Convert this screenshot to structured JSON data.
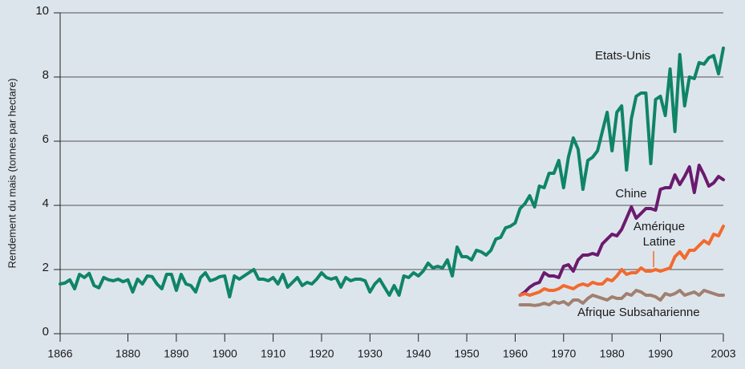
{
  "chart_data": {
    "type": "line",
    "ylabel": "Rendement du mais (tonnes par hectare)",
    "xlim": [
      1866,
      2003
    ],
    "ylim": [
      0,
      10
    ],
    "xticks": [
      1866,
      1880,
      1890,
      1900,
      1910,
      1920,
      1930,
      1940,
      1950,
      1960,
      1970,
      1980,
      1990,
      2003
    ],
    "yticks": [
      0,
      2,
      4,
      6,
      8,
      10
    ],
    "grid": true,
    "series": [
      {
        "name": "Etats-Unis",
        "color": "#0f8565",
        "x": [
          1866,
          1867,
          1868,
          1869,
          1870,
          1871,
          1872,
          1873,
          1874,
          1875,
          1876,
          1877,
          1878,
          1879,
          1880,
          1881,
          1882,
          1883,
          1884,
          1885,
          1886,
          1887,
          1888,
          1889,
          1890,
          1891,
          1892,
          1893,
          1894,
          1895,
          1896,
          1897,
          1898,
          1899,
          1900,
          1901,
          1902,
          1903,
          1904,
          1905,
          1906,
          1907,
          1908,
          1909,
          1910,
          1911,
          1912,
          1913,
          1914,
          1915,
          1916,
          1917,
          1918,
          1919,
          1920,
          1921,
          1922,
          1923,
          1924,
          1925,
          1926,
          1927,
          1928,
          1929,
          1930,
          1931,
          1932,
          1933,
          1934,
          1935,
          1936,
          1937,
          1938,
          1939,
          1940,
          1941,
          1942,
          1943,
          1944,
          1945,
          1946,
          1947,
          1948,
          1949,
          1950,
          1951,
          1952,
          1953,
          1954,
          1955,
          1956,
          1957,
          1958,
          1959,
          1960,
          1961,
          1962,
          1963,
          1964,
          1965,
          1966,
          1967,
          1968,
          1969,
          1970,
          1971,
          1972,
          1973,
          1974,
          1975,
          1976,
          1977,
          1978,
          1979,
          1980,
          1981,
          1982,
          1983,
          1984,
          1985,
          1986,
          1987,
          1988,
          1989,
          1990,
          1991,
          1992,
          1993,
          1994,
          1995,
          1996,
          1997,
          1998,
          1999,
          2000,
          2001,
          2002,
          2003
        ],
        "values": [
          1.55,
          1.58,
          1.68,
          1.4,
          1.85,
          1.75,
          1.88,
          1.5,
          1.43,
          1.75,
          1.68,
          1.65,
          1.7,
          1.62,
          1.68,
          1.3,
          1.7,
          1.55,
          1.8,
          1.78,
          1.55,
          1.4,
          1.85,
          1.85,
          1.35,
          1.85,
          1.55,
          1.5,
          1.3,
          1.75,
          1.9,
          1.65,
          1.7,
          1.78,
          1.8,
          1.15,
          1.8,
          1.7,
          1.8,
          1.9,
          2.0,
          1.7,
          1.7,
          1.65,
          1.75,
          1.55,
          1.85,
          1.45,
          1.6,
          1.75,
          1.5,
          1.6,
          1.55,
          1.7,
          1.9,
          1.75,
          1.7,
          1.75,
          1.45,
          1.75,
          1.65,
          1.7,
          1.7,
          1.65,
          1.3,
          1.55,
          1.7,
          1.45,
          1.2,
          1.5,
          1.2,
          1.8,
          1.75,
          1.9,
          1.8,
          1.95,
          2.2,
          2.05,
          2.1,
          2.05,
          2.3,
          1.8,
          2.7,
          2.4,
          2.4,
          2.3,
          2.6,
          2.55,
          2.45,
          2.6,
          2.95,
          3.0,
          3.3,
          3.35,
          3.45,
          3.9,
          4.05,
          4.3,
          3.95,
          4.6,
          4.55,
          5.0,
          5.0,
          5.4,
          4.55,
          5.5,
          6.1,
          5.75,
          4.5,
          5.4,
          5.5,
          5.7,
          6.3,
          6.9,
          5.7,
          6.9,
          7.1,
          5.1,
          6.7,
          7.4,
          7.5,
          7.5,
          5.3,
          7.3,
          7.4,
          6.8,
          8.25,
          6.3,
          8.7,
          7.1,
          8.0,
          7.95,
          8.45,
          8.4,
          8.6,
          8.67,
          8.1,
          8.9
        ]
      },
      {
        "name": "Chine",
        "color": "#6b1a6e",
        "x": [
          1961,
          1962,
          1963,
          1964,
          1965,
          1966,
          1967,
          1968,
          1969,
          1970,
          1971,
          1972,
          1973,
          1974,
          1975,
          1976,
          1977,
          1978,
          1979,
          1980,
          1981,
          1982,
          1983,
          1984,
          1985,
          1986,
          1987,
          1988,
          1989,
          1990,
          1991,
          1992,
          1993,
          1994,
          1995,
          1996,
          1997,
          1998,
          1999,
          2000,
          2001,
          2002,
          2003
        ],
        "values": [
          1.2,
          1.3,
          1.45,
          1.55,
          1.6,
          1.9,
          1.8,
          1.8,
          1.75,
          2.1,
          2.15,
          1.95,
          2.3,
          2.45,
          2.45,
          2.5,
          2.45,
          2.8,
          2.95,
          3.1,
          3.05,
          3.25,
          3.6,
          3.95,
          3.6,
          3.75,
          3.9,
          3.9,
          3.85,
          4.5,
          4.55,
          4.55,
          4.95,
          4.65,
          4.9,
          5.2,
          4.4,
          5.25,
          4.95,
          4.6,
          4.7,
          4.9,
          4.8
        ]
      },
      {
        "name": "Amérique Latine",
        "color": "#f26a2e",
        "x": [
          1961,
          1962,
          1963,
          1964,
          1965,
          1966,
          1967,
          1968,
          1969,
          1970,
          1971,
          1972,
          1973,
          1974,
          1975,
          1976,
          1977,
          1978,
          1979,
          1980,
          1981,
          1982,
          1983,
          1984,
          1985,
          1986,
          1987,
          1988,
          1989,
          1990,
          1991,
          1992,
          1993,
          1994,
          1995,
          1996,
          1997,
          1998,
          1999,
          2000,
          2001,
          2002,
          2003
        ],
        "values": [
          1.2,
          1.25,
          1.2,
          1.25,
          1.3,
          1.4,
          1.35,
          1.35,
          1.4,
          1.5,
          1.45,
          1.4,
          1.5,
          1.55,
          1.5,
          1.6,
          1.55,
          1.55,
          1.7,
          1.65,
          1.8,
          2.0,
          1.85,
          1.9,
          1.9,
          2.05,
          1.95,
          1.95,
          2.0,
          1.95,
          2.0,
          2.05,
          2.4,
          2.55,
          2.35,
          2.6,
          2.6,
          2.75,
          2.9,
          2.8,
          3.1,
          3.05,
          3.35
        ]
      },
      {
        "name": "Afrique Subsaharienne",
        "color": "#a08070",
        "x": [
          1961,
          1962,
          1963,
          1964,
          1965,
          1966,
          1967,
          1968,
          1969,
          1970,
          1971,
          1972,
          1973,
          1974,
          1975,
          1976,
          1977,
          1978,
          1979,
          1980,
          1981,
          1982,
          1983,
          1984,
          1985,
          1986,
          1987,
          1988,
          1989,
          1990,
          1991,
          1992,
          1993,
          1994,
          1995,
          1996,
          1997,
          1998,
          1999,
          2000,
          2001,
          2002,
          2003
        ],
        "values": [
          0.9,
          0.9,
          0.9,
          0.88,
          0.9,
          0.95,
          0.9,
          1.0,
          0.95,
          1.0,
          0.9,
          1.05,
          1.05,
          0.95,
          1.1,
          1.2,
          1.15,
          1.1,
          1.05,
          1.15,
          1.1,
          1.1,
          1.25,
          1.2,
          1.35,
          1.3,
          1.2,
          1.2,
          1.15,
          1.05,
          1.25,
          1.2,
          1.25,
          1.35,
          1.2,
          1.25,
          1.3,
          1.2,
          1.35,
          1.3,
          1.25,
          1.2,
          1.2
        ]
      }
    ]
  }
}
